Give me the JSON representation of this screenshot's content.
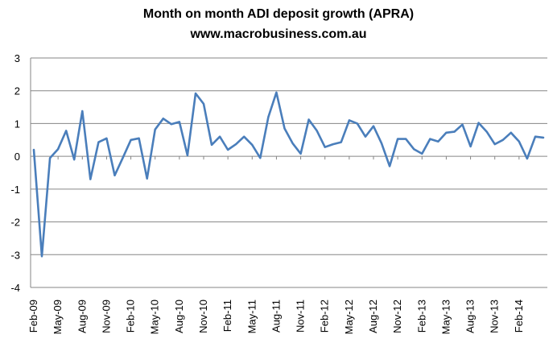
{
  "chart_data": {
    "type": "line",
    "title": "Month on month ADI deposit growth (APRA)",
    "subtitle": "www.macrobusiness.com.au",
    "xlabel": "",
    "ylabel": "",
    "ylim": [
      -4,
      3
    ],
    "y_ticks": [
      -4,
      -3,
      -2,
      -1,
      0,
      1,
      2,
      3
    ],
    "x_tick_labels": [
      "Feb-09",
      "May-09",
      "Aug-09",
      "Nov-09",
      "Feb-10",
      "May-10",
      "Aug-10",
      "Nov-10",
      "Feb-11",
      "May-11",
      "Aug-11",
      "Nov-11",
      "Feb-12",
      "May-12",
      "Aug-12",
      "Nov-12",
      "Feb-13",
      "May-13",
      "Aug-13",
      "Nov-13",
      "Feb-14"
    ],
    "grid": true,
    "line_color": "#4a7ebb",
    "series": [
      {
        "name": "Month on month ADI deposit growth",
        "x": [
          "Feb-09",
          "Mar-09",
          "Apr-09",
          "May-09",
          "Jun-09",
          "Jul-09",
          "Aug-09",
          "Sep-09",
          "Oct-09",
          "Nov-09",
          "Dec-09",
          "Jan-10",
          "Feb-10",
          "Mar-10",
          "Apr-10",
          "May-10",
          "Jun-10",
          "Jul-10",
          "Aug-10",
          "Sep-10",
          "Oct-10",
          "Nov-10",
          "Dec-10",
          "Jan-11",
          "Feb-11",
          "Mar-11",
          "Apr-11",
          "May-11",
          "Jun-11",
          "Jul-11",
          "Aug-11",
          "Sep-11",
          "Oct-11",
          "Nov-11",
          "Dec-11",
          "Jan-12",
          "Feb-12",
          "Mar-12",
          "Apr-12",
          "May-12",
          "Jun-12",
          "Jul-12",
          "Aug-12",
          "Sep-12",
          "Oct-12",
          "Nov-12",
          "Dec-12",
          "Jan-13",
          "Feb-13",
          "Mar-13",
          "Apr-13",
          "May-13",
          "Jun-13",
          "Jul-13",
          "Aug-13",
          "Sep-13",
          "Oct-13",
          "Nov-13",
          "Dec-13",
          "Jan-14",
          "Feb-14",
          "Mar-14",
          "Apr-14",
          "May-14"
        ],
        "values": [
          0.2,
          -3.05,
          -0.05,
          0.22,
          0.78,
          -0.1,
          1.38,
          -0.7,
          0.43,
          0.55,
          -0.58,
          -0.05,
          0.5,
          0.55,
          -0.68,
          0.82,
          1.15,
          0.98,
          1.05,
          0.03,
          1.92,
          1.6,
          0.35,
          0.6,
          0.2,
          0.37,
          0.6,
          0.35,
          -0.05,
          1.2,
          1.95,
          0.85,
          0.4,
          0.08,
          1.12,
          0.78,
          0.28,
          0.37,
          0.43,
          1.1,
          1.0,
          0.6,
          0.92,
          0.4,
          -0.3,
          0.53,
          0.53,
          0.22,
          0.08,
          0.53,
          0.45,
          0.72,
          0.75,
          0.97,
          0.3,
          1.02,
          0.75,
          0.37,
          0.5,
          0.72,
          0.45,
          -0.07,
          0.6,
          0.57
        ]
      }
    ]
  }
}
